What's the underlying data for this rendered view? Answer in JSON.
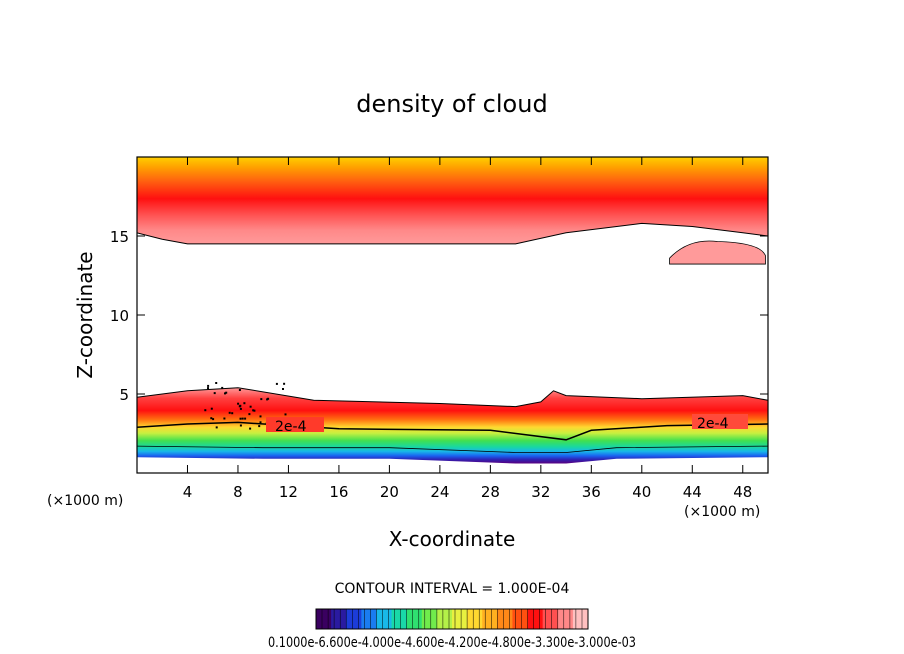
{
  "chart_data": {
    "type": "heatmap",
    "title": "density of cloud",
    "xlabel": "X-coordinate",
    "ylabel": "Z-coordinate",
    "x_unit_left": "(×1000 m)",
    "x_unit_right": "(×1000 m)",
    "xlim": [
      0,
      50
    ],
    "ylim": [
      0,
      20
    ],
    "x_ticks": [
      4,
      8,
      12,
      16,
      20,
      24,
      28,
      32,
      36,
      40,
      44,
      48
    ],
    "x_tick_labels": [
      "4",
      "8",
      "12",
      "16",
      "20",
      "24",
      "28",
      "32",
      "36",
      "40",
      "44",
      "48"
    ],
    "y_ticks": [
      5,
      10,
      15
    ],
    "y_tick_labels": [
      "5",
      "10",
      "15"
    ],
    "contour_labels": [
      "2e-4",
      "2e-4"
    ],
    "contour_interval_text": "CONTOUR INTERVAL = 1.000E-04",
    "colorbar_label_text": "0.1000e-6.600e-4.000e-4.600e-4.200e-4.800e-3.300e-3.000e-03",
    "colorbar_colors": [
      "#3a0060",
      "#2a1aa0",
      "#1c3cd8",
      "#1a7cf0",
      "#19b8e8",
      "#19d8a8",
      "#2fe070",
      "#70ec4c",
      "#b4f048",
      "#e8f040",
      "#ffd830",
      "#ffb020",
      "#ff8818",
      "#ff5010",
      "#ff1010",
      "#ff5050",
      "#ff8888",
      "#ffc0c0"
    ],
    "upper_cloud_base_km": [
      [
        0,
        15.2
      ],
      [
        2,
        14.8
      ],
      [
        4,
        14.5
      ],
      [
        30,
        14.5
      ],
      [
        34,
        15.2
      ],
      [
        40,
        15.8
      ],
      [
        44,
        15.6
      ],
      [
        48,
        15.2
      ],
      [
        50,
        15.0
      ]
    ],
    "lower_cloud_top_km": [
      [
        0,
        4.8
      ],
      [
        4,
        5.2
      ],
      [
        8,
        5.4
      ],
      [
        14,
        4.6
      ],
      [
        24,
        4.4
      ],
      [
        30,
        4.2
      ],
      [
        32,
        4.5
      ],
      [
        33,
        5.2
      ],
      [
        34,
        4.9
      ],
      [
        40,
        4.7
      ],
      [
        48,
        4.9
      ],
      [
        50,
        4.6
      ]
    ],
    "contour_2e4_km": [
      [
        0,
        2.9
      ],
      [
        4,
        3.1
      ],
      [
        8,
        3.2
      ],
      [
        16,
        2.8
      ],
      [
        28,
        2.7
      ],
      [
        34,
        2.1
      ],
      [
        36,
        2.7
      ],
      [
        42,
        3.0
      ],
      [
        50,
        3.1
      ]
    ],
    "lower_cloud_base_km": [
      [
        0,
        1.0
      ],
      [
        10,
        0.9
      ],
      [
        20,
        0.9
      ],
      [
        30,
        0.6
      ],
      [
        34,
        0.6
      ],
      [
        38,
        0.9
      ],
      [
        50,
        1.0
      ]
    ],
    "isolated_patch_km": {
      "x_center": 46,
      "z_center": 13.9,
      "x_halfwidth": 3.8,
      "z_halfheight": 0.75
    }
  }
}
